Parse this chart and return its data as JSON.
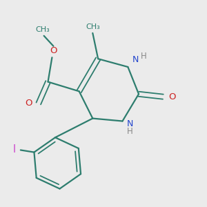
{
  "background_color": "#ebebeb",
  "bond_color": "#2d7d6e",
  "nitrogen_color": "#2244cc",
  "oxygen_color": "#cc2222",
  "iodine_color": "#cc44cc",
  "figsize": [
    3.0,
    3.0
  ],
  "dpi": 100,
  "xlim": [
    1.5,
    8.5
  ],
  "ylim": [
    1.0,
    8.5
  ]
}
